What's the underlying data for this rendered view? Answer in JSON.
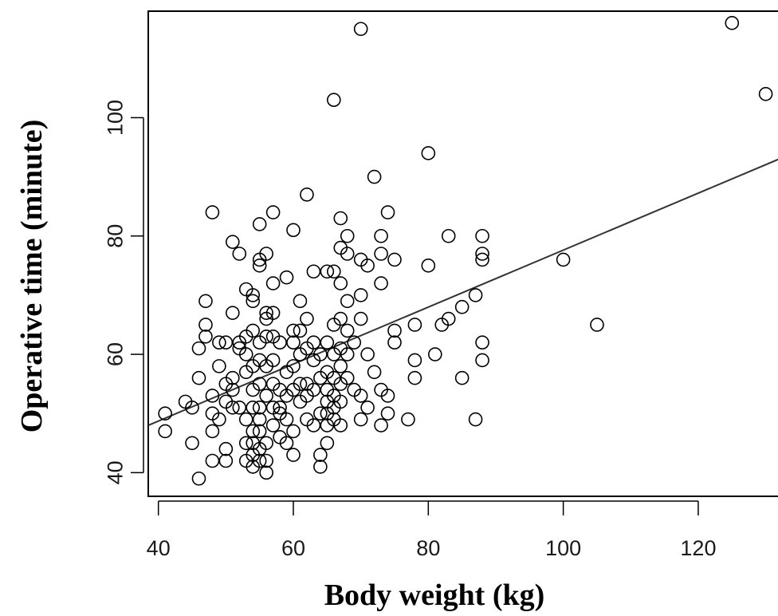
{
  "chart_data": {
    "type": "scatter",
    "title": "",
    "xlabel": "Body weight (kg)",
    "ylabel": "Operative time (minute)",
    "xlim": [
      38.5,
      133
    ],
    "ylim": [
      36,
      118
    ],
    "xticks": [
      40,
      60,
      80,
      100,
      120
    ],
    "yticks": [
      40,
      60,
      80,
      100
    ],
    "grid": false,
    "legend": "none",
    "colors": {
      "marker": "#000000",
      "line": "#333333",
      "frame": "#000000"
    },
    "trendline": {
      "type": "linear",
      "points": [
        [
          38.5,
          48
        ],
        [
          133,
          93.5
        ]
      ]
    },
    "points": [
      [
        41,
        50
      ],
      [
        41,
        47
      ],
      [
        44,
        52
      ],
      [
        45,
        51
      ],
      [
        45,
        45
      ],
      [
        46,
        39
      ],
      [
        46,
        61
      ],
      [
        46,
        56
      ],
      [
        47,
        69
      ],
      [
        47,
        65
      ],
      [
        47,
        63
      ],
      [
        48,
        47
      ],
      [
        48,
        50
      ],
      [
        48,
        53
      ],
      [
        48,
        42
      ],
      [
        48,
        84
      ],
      [
        49,
        58
      ],
      [
        49,
        49
      ],
      [
        49,
        62
      ],
      [
        50,
        44
      ],
      [
        50,
        55
      ],
      [
        50,
        62
      ],
      [
        50,
        42
      ],
      [
        50,
        52
      ],
      [
        51,
        79
      ],
      [
        51,
        67
      ],
      [
        51,
        56
      ],
      [
        51,
        51
      ],
      [
        51,
        54
      ],
      [
        52,
        77
      ],
      [
        52,
        61
      ],
      [
        52,
        51
      ],
      [
        52,
        62
      ],
      [
        53,
        71
      ],
      [
        53,
        63
      ],
      [
        53,
        57
      ],
      [
        53,
        60
      ],
      [
        53,
        49
      ],
      [
        53,
        45
      ],
      [
        53,
        42
      ],
      [
        54,
        70
      ],
      [
        54,
        69
      ],
      [
        54,
        64
      ],
      [
        54,
        58
      ],
      [
        54,
        54
      ],
      [
        54,
        51
      ],
      [
        54,
        47
      ],
      [
        54,
        45
      ],
      [
        54,
        43
      ],
      [
        54,
        41
      ],
      [
        55,
        82
      ],
      [
        55,
        76
      ],
      [
        55,
        75
      ],
      [
        55,
        62
      ],
      [
        55,
        59
      ],
      [
        55,
        55
      ],
      [
        55,
        51
      ],
      [
        55,
        49
      ],
      [
        55,
        47
      ],
      [
        55,
        44
      ],
      [
        55,
        42
      ],
      [
        56,
        77
      ],
      [
        56,
        67
      ],
      [
        56,
        66
      ],
      [
        56,
        63
      ],
      [
        56,
        58
      ],
      [
        56,
        53
      ],
      [
        56,
        45
      ],
      [
        56,
        42
      ],
      [
        56,
        40
      ],
      [
        57,
        84
      ],
      [
        57,
        72
      ],
      [
        57,
        67
      ],
      [
        57,
        63
      ],
      [
        57,
        59
      ],
      [
        57,
        55
      ],
      [
        57,
        51
      ],
      [
        57,
        48
      ],
      [
        58,
        62
      ],
      [
        58,
        54
      ],
      [
        58,
        50
      ],
      [
        58,
        51
      ],
      [
        58,
        46
      ],
      [
        59,
        73
      ],
      [
        59,
        57
      ],
      [
        59,
        53
      ],
      [
        59,
        49
      ],
      [
        59,
        45
      ],
      [
        60,
        81
      ],
      [
        60,
        64
      ],
      [
        60,
        62
      ],
      [
        60,
        58
      ],
      [
        60,
        54
      ],
      [
        60,
        47
      ],
      [
        60,
        43
      ],
      [
        61,
        69
      ],
      [
        61,
        64
      ],
      [
        61,
        60
      ],
      [
        61,
        55
      ],
      [
        61,
        52
      ],
      [
        62,
        87
      ],
      [
        62,
        66
      ],
      [
        62,
        61
      ],
      [
        62,
        55
      ],
      [
        62,
        53
      ],
      [
        62,
        49
      ],
      [
        63,
        74
      ],
      [
        63,
        62
      ],
      [
        63,
        59
      ],
      [
        63,
        54
      ],
      [
        63,
        48
      ],
      [
        64,
        60
      ],
      [
        64,
        56
      ],
      [
        64,
        50
      ],
      [
        64,
        43
      ],
      [
        64,
        41
      ],
      [
        65,
        74
      ],
      [
        65,
        62
      ],
      [
        65,
        57
      ],
      [
        65,
        54
      ],
      [
        65,
        52
      ],
      [
        65,
        50
      ],
      [
        65,
        48
      ],
      [
        65,
        45
      ],
      [
        66,
        103
      ],
      [
        66,
        74
      ],
      [
        66,
        65
      ],
      [
        66,
        60
      ],
      [
        66,
        56
      ],
      [
        66,
        53
      ],
      [
        66,
        51
      ],
      [
        66,
        49
      ],
      [
        67,
        83
      ],
      [
        67,
        78
      ],
      [
        67,
        72
      ],
      [
        67,
        66
      ],
      [
        67,
        61
      ],
      [
        67,
        58
      ],
      [
        67,
        55
      ],
      [
        67,
        52
      ],
      [
        67,
        48
      ],
      [
        68,
        80
      ],
      [
        68,
        77
      ],
      [
        68,
        69
      ],
      [
        68,
        64
      ],
      [
        68,
        60
      ],
      [
        68,
        56
      ],
      [
        69,
        62
      ],
      [
        69,
        54
      ],
      [
        70,
        115
      ],
      [
        70,
        76
      ],
      [
        70,
        70
      ],
      [
        70,
        66
      ],
      [
        70,
        53
      ],
      [
        70,
        49
      ],
      [
        71,
        75
      ],
      [
        71,
        60
      ],
      [
        71,
        51
      ],
      [
        72,
        90
      ],
      [
        72,
        57
      ],
      [
        73,
        80
      ],
      [
        73,
        77
      ],
      [
        73,
        72
      ],
      [
        73,
        54
      ],
      [
        73,
        48
      ],
      [
        74,
        84
      ],
      [
        74,
        53
      ],
      [
        74,
        50
      ],
      [
        75,
        76
      ],
      [
        75,
        64
      ],
      [
        75,
        62
      ],
      [
        77,
        49
      ],
      [
        78,
        65
      ],
      [
        78,
        59
      ],
      [
        78,
        56
      ],
      [
        80,
        75
      ],
      [
        80,
        94
      ],
      [
        81,
        60
      ],
      [
        82,
        65
      ],
      [
        83,
        80
      ],
      [
        83,
        66
      ],
      [
        85,
        68
      ],
      [
        85,
        56
      ],
      [
        87,
        70
      ],
      [
        87,
        49
      ],
      [
        88,
        80
      ],
      [
        88,
        77
      ],
      [
        88,
        76
      ],
      [
        88,
        62
      ],
      [
        88,
        59
      ],
      [
        100,
        76
      ],
      [
        105,
        65
      ],
      [
        125,
        116
      ],
      [
        130,
        104
      ]
    ]
  }
}
